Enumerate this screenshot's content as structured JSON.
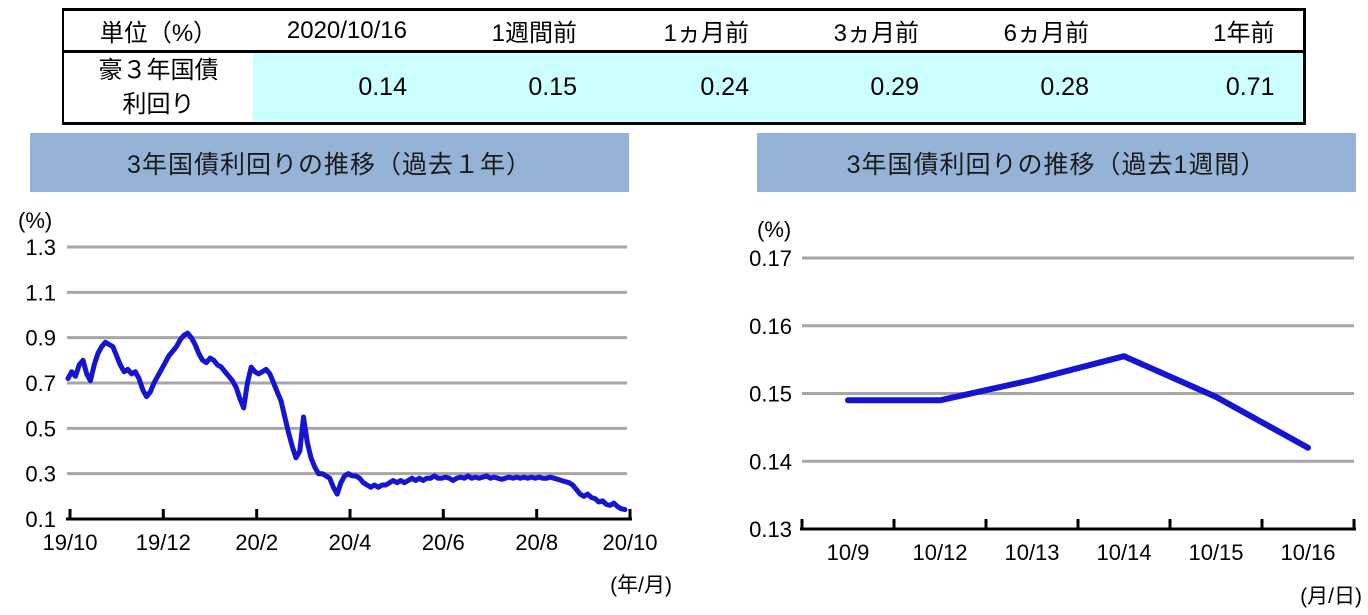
{
  "colors": {
    "title_band": "#95b3d7",
    "table_highlight": "#ccffff",
    "line": "#1414d2",
    "grid": "#a6a6a6",
    "axis": "#000000"
  },
  "table": {
    "unit_label": "単位（%）",
    "columns": [
      "2020/10/16",
      "1週間前",
      "1ヵ月前",
      "3ヵ月前",
      "6ヵ月前",
      "1年前"
    ],
    "row_label_line1": "豪３年国債",
    "row_label_line2": "利回り",
    "values": [
      "0.14",
      "0.15",
      "0.24",
      "0.29",
      "0.28",
      "0.71"
    ]
  },
  "chart_data": [
    {
      "type": "line",
      "title": "3年国債利回りの推移（過去１年）",
      "series_name": "豪3年国債利回り",
      "ylabel": "(%)",
      "xlabel": "(年/月)",
      "x_ticks": [
        "19/10",
        "19/12",
        "20/2",
        "20/4",
        "20/6",
        "20/8",
        "20/10"
      ],
      "y_ticks": [
        "0.1",
        "0.3",
        "0.5",
        "0.7",
        "0.9",
        "1.1",
        "1.3"
      ],
      "ylim": [
        0.1,
        1.3
      ],
      "grid": true,
      "legend": "none",
      "values": [
        0.72,
        0.75,
        0.73,
        0.78,
        0.8,
        0.74,
        0.71,
        0.78,
        0.83,
        0.86,
        0.88,
        0.87,
        0.86,
        0.82,
        0.78,
        0.75,
        0.76,
        0.74,
        0.75,
        0.72,
        0.67,
        0.64,
        0.66,
        0.7,
        0.73,
        0.76,
        0.79,
        0.82,
        0.84,
        0.86,
        0.89,
        0.91,
        0.92,
        0.9,
        0.87,
        0.83,
        0.8,
        0.79,
        0.81,
        0.8,
        0.78,
        0.77,
        0.75,
        0.73,
        0.71,
        0.68,
        0.63,
        0.59,
        0.7,
        0.77,
        0.75,
        0.74,
        0.75,
        0.76,
        0.74,
        0.7,
        0.66,
        0.62,
        0.55,
        0.48,
        0.42,
        0.37,
        0.4,
        0.55,
        0.44,
        0.37,
        0.33,
        0.3,
        0.3,
        0.29,
        0.28,
        0.24,
        0.21,
        0.26,
        0.29,
        0.3,
        0.29,
        0.29,
        0.28,
        0.26,
        0.25,
        0.24,
        0.25,
        0.24,
        0.25,
        0.25,
        0.26,
        0.27,
        0.26,
        0.27,
        0.26,
        0.27,
        0.28,
        0.27,
        0.28,
        0.27,
        0.28,
        0.28,
        0.29,
        0.28,
        0.28,
        0.285,
        0.28,
        0.27,
        0.28,
        0.285,
        0.28,
        0.29,
        0.28,
        0.285,
        0.28,
        0.285,
        0.29,
        0.28,
        0.285,
        0.28,
        0.275,
        0.28,
        0.285,
        0.28,
        0.285,
        0.28,
        0.285,
        0.28,
        0.285,
        0.28,
        0.285,
        0.28,
        0.28,
        0.285,
        0.28,
        0.275,
        0.27,
        0.265,
        0.26,
        0.25,
        0.23,
        0.21,
        0.2,
        0.21,
        0.195,
        0.19,
        0.175,
        0.18,
        0.165,
        0.16,
        0.17,
        0.155,
        0.145,
        0.142
      ]
    },
    {
      "type": "line",
      "title": "3年国債利回りの推移（過去1週間）",
      "series_name": "豪3年国債利回り",
      "ylabel": "(%)",
      "xlabel": "(月/日)",
      "categories": [
        "10/9",
        "10/12",
        "10/13",
        "10/14",
        "10/15",
        "10/16"
      ],
      "y_ticks": [
        "0.13",
        "0.14",
        "0.15",
        "0.16",
        "0.17"
      ],
      "ylim": [
        0.13,
        0.17
      ],
      "grid": true,
      "legend": "none",
      "values": [
        0.149,
        0.149,
        0.152,
        0.1555,
        0.1495,
        0.142
      ]
    }
  ]
}
